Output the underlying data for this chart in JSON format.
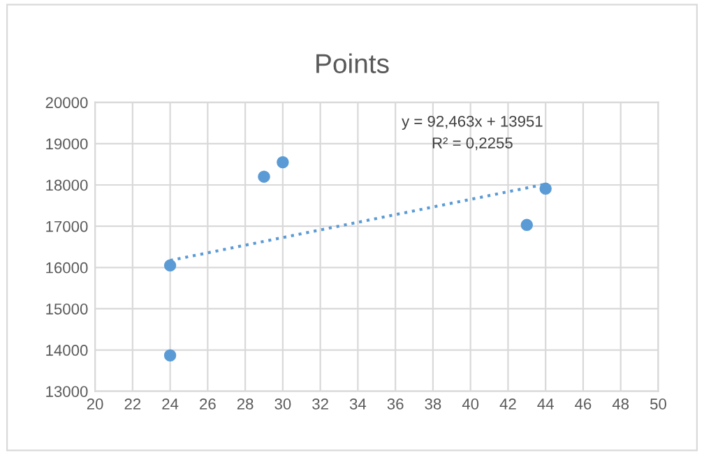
{
  "chart_data": {
    "type": "scatter",
    "title": "Points",
    "series": [
      {
        "color": "#5b9bd5",
        "x": [
          24,
          24,
          29,
          30,
          43,
          44
        ],
        "values": [
          16050,
          13870,
          18200,
          18550,
          17030,
          17910
        ],
        "marker": "circle"
      },
      {
        "type": "line",
        "color": "#5b9bd5",
        "x": [
          24,
          44
        ],
        "values": [
          16170,
          18020
        ],
        "line_style": "dotted",
        "marker": "none"
      }
    ],
    "annotations": [
      "y = 92,463x + 13951",
      "R² = 0,2255"
    ],
    "xlim": [
      20,
      50
    ],
    "xticks": [
      20,
      22,
      24,
      26,
      28,
      30,
      32,
      34,
      36,
      38,
      40,
      42,
      44,
      46,
      48,
      50
    ],
    "ylim": [
      13000,
      20000
    ],
    "yticks": [
      13000,
      14000,
      15000,
      16000,
      17000,
      18000,
      19000,
      20000
    ],
    "grid": true,
    "legend": false
  }
}
